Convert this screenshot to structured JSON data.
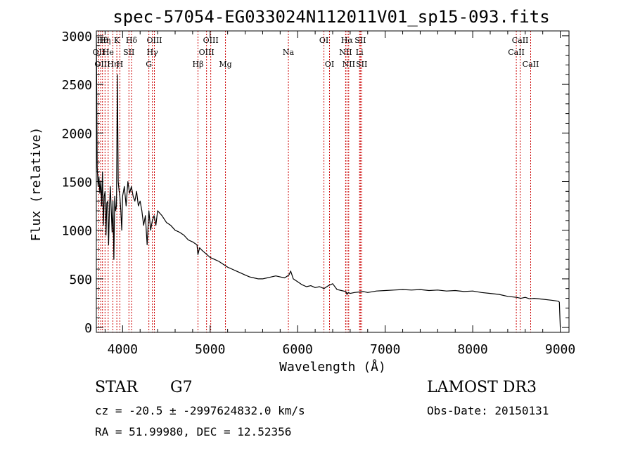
{
  "chart_data": {
    "type": "line",
    "title": "spec-57054-EG033024N112011V01_sp15-093.fits",
    "xlabel": "Wavelength (Å)",
    "ylabel": "Flux (relative)",
    "xlim": [
      3700,
      9100
    ],
    "ylim": [
      -50,
      3050
    ],
    "xticks": [
      4000,
      5000,
      6000,
      7000,
      8000,
      9000
    ],
    "yticks": [
      0,
      500,
      1000,
      1500,
      2000,
      2500,
      3000
    ],
    "grid": false,
    "series": [
      {
        "name": "spectrum",
        "x": [
          3700,
          3710,
          3720,
          3730,
          3740,
          3750,
          3760,
          3770,
          3780,
          3790,
          3800,
          3810,
          3820,
          3830,
          3840,
          3850,
          3860,
          3870,
          3880,
          3890,
          3900,
          3910,
          3920,
          3930,
          3940,
          3950,
          3960,
          3968,
          3980,
          3990,
          4000,
          4020,
          4040,
          4060,
          4080,
          4100,
          4120,
          4140,
          4160,
          4180,
          4200,
          4220,
          4240,
          4260,
          4280,
          4300,
          4320,
          4340,
          4360,
          4380,
          4400,
          4450,
          4500,
          4550,
          4600,
          4650,
          4700,
          4750,
          4800,
          4850,
          4860,
          4880,
          4900,
          4950,
          5000,
          5050,
          5100,
          5150,
          5200,
          5250,
          5300,
          5350,
          5400,
          5450,
          5500,
          5550,
          5600,
          5650,
          5700,
          5750,
          5800,
          5850,
          5900,
          5920,
          5950,
          6000,
          6050,
          6100,
          6150,
          6200,
          6250,
          6300,
          6350,
          6400,
          6450,
          6500,
          6550,
          6563,
          6580,
          6600,
          6650,
          6700,
          6750,
          6800,
          6900,
          7000,
          7100,
          7200,
          7300,
          7400,
          7500,
          7600,
          7700,
          7800,
          7900,
          8000,
          8100,
          8200,
          8300,
          8400,
          8500,
          8550,
          8600,
          8650,
          8700,
          8800,
          8900,
          8980,
          8990,
          9000
        ],
        "y": [
          3000,
          1650,
          1450,
          1550,
          1380,
          1500,
          1250,
          1600,
          1050,
          1350,
          1400,
          950,
          1280,
          1300,
          850,
          1250,
          1450,
          1200,
          980,
          1300,
          700,
          1350,
          1200,
          1250,
          2600,
          1500,
          1400,
          1350,
          1200,
          1000,
          1350,
          1450,
          1250,
          1500,
          1380,
          1450,
          1350,
          1300,
          1400,
          1250,
          1300,
          1200,
          1050,
          1150,
          850,
          1200,
          1000,
          1100,
          1150,
          1050,
          1200,
          1150,
          1080,
          1050,
          1000,
          980,
          950,
          900,
          880,
          850,
          750,
          820,
          800,
          760,
          720,
          700,
          680,
          650,
          620,
          600,
          580,
          560,
          540,
          520,
          510,
          500,
          500,
          510,
          520,
          530,
          520,
          510,
          540,
          580,
          500,
          470,
          440,
          420,
          430,
          410,
          420,
          400,
          430,
          450,
          390,
          380,
          370,
          340,
          360,
          350,
          360,
          365,
          370,
          360,
          375,
          380,
          385,
          390,
          385,
          390,
          380,
          385,
          375,
          380,
          370,
          375,
          360,
          350,
          340,
          320,
          310,
          300,
          310,
          295,
          300,
          290,
          280,
          270,
          260,
          0
        ]
      }
    ],
    "line_markers": [
      {
        "x": 3727,
        "label": "OII",
        "row": 1
      },
      {
        "x": 3750,
        "label": "OII",
        "row": 2
      },
      {
        "x": 3770,
        "label": "Hθ",
        "row": 0
      },
      {
        "x": 3799,
        "label": "Hη",
        "row": 0
      },
      {
        "x": 3835,
        "label": "He",
        "row": 1
      },
      {
        "x": 3889,
        "label": "Hη",
        "row": 2
      },
      {
        "x": 3934,
        "label": "K",
        "row": 0
      },
      {
        "x": 3969,
        "label": "H",
        "row": 2
      },
      {
        "x": 4072,
        "label": "SII",
        "row": 1
      },
      {
        "x": 4102,
        "label": "Hδ",
        "row": 0
      },
      {
        "x": 4300,
        "label": "G",
        "row": 2
      },
      {
        "x": 4340,
        "label": "Hγ",
        "row": 1
      },
      {
        "x": 4363,
        "label": "OIII",
        "row": 0
      },
      {
        "x": 4861,
        "label": "Hβ",
        "row": 2
      },
      {
        "x": 4959,
        "label": "OIII",
        "row": 1
      },
      {
        "x": 5007,
        "label": "OIII",
        "row": 0
      },
      {
        "x": 5175,
        "label": "Mg",
        "row": 2
      },
      {
        "x": 5894,
        "label": "Na",
        "row": 1
      },
      {
        "x": 6300,
        "label": "OI",
        "row": 0
      },
      {
        "x": 6364,
        "label": "OI",
        "row": 2
      },
      {
        "x": 6548,
        "label": "NII",
        "row": 1
      },
      {
        "x": 6563,
        "label": "Hα",
        "row": 0
      },
      {
        "x": 6583,
        "label": "NII",
        "row": 2
      },
      {
        "x": 6707,
        "label": "Li",
        "row": 1
      },
      {
        "x": 6716,
        "label": "SII",
        "row": 0
      },
      {
        "x": 6731,
        "label": "SII",
        "row": 2
      },
      {
        "x": 8498,
        "label": "CaII",
        "row": 1
      },
      {
        "x": 8542,
        "label": "CaII",
        "row": 0
      },
      {
        "x": 8662,
        "label": "CaII",
        "row": 2
      }
    ],
    "colors": {
      "spectrum": "#000000",
      "markers": "#cc0000"
    }
  },
  "info": {
    "class": "STAR",
    "subclass": "G7",
    "survey": "LAMOST DR3",
    "redshift": "cz = -20.5 ± -2997624832.0 km/s",
    "obs_date": "Obs-Date: 20150131",
    "coords": "RA =  51.99980, DEC =  12.52356"
  }
}
